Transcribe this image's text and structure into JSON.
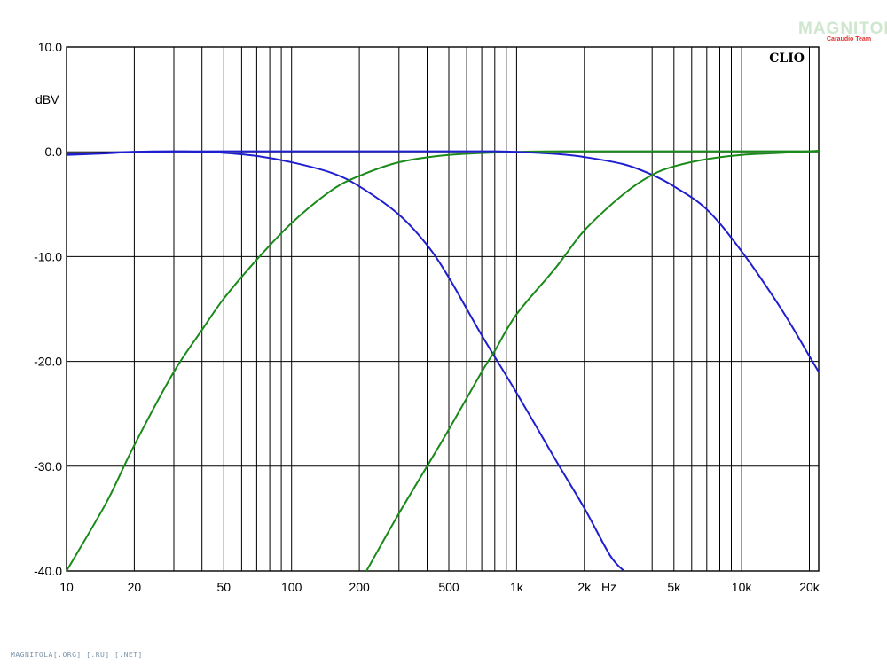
{
  "chart_data": {
    "type": "line",
    "x_scale": "log",
    "xlim": [
      10,
      22000
    ],
    "ylim": [
      -40,
      10
    ],
    "y_unit_label": "dBV",
    "x_unit_label": "Hz",
    "grid": true,
    "brand_label": "CLIO",
    "y_ticks": [
      {
        "value": 10,
        "label": "10.0"
      },
      {
        "value": 0,
        "label": "0.0"
      },
      {
        "value": -10,
        "label": "-10.0"
      },
      {
        "value": -20,
        "label": "-20.0"
      },
      {
        "value": -30,
        "label": "-30.0"
      },
      {
        "value": -40,
        "label": "-40.0"
      }
    ],
    "x_ticks": [
      {
        "value": 10,
        "label": "10"
      },
      {
        "value": 20,
        "label": "20"
      },
      {
        "value": 50,
        "label": "50"
      },
      {
        "value": 100,
        "label": "100"
      },
      {
        "value": 200,
        "label": "200"
      },
      {
        "value": 500,
        "label": "500"
      },
      {
        "value": 1000,
        "label": "1k"
      },
      {
        "value": 2000,
        "label": "2k"
      },
      {
        "value": 5000,
        "label": "5k"
      },
      {
        "value": 10000,
        "label": "10k"
      },
      {
        "value": 20000,
        "label": "20k"
      }
    ],
    "series": [
      {
        "color": "#1f1fd0",
        "points": [
          [
            10,
            -0.3
          ],
          [
            15,
            -0.15
          ],
          [
            20,
            0
          ],
          [
            30,
            0.05
          ],
          [
            40,
            0
          ],
          [
            50,
            -0.1
          ],
          [
            70,
            -0.4
          ],
          [
            100,
            -1.0
          ],
          [
            150,
            -2.0
          ],
          [
            200,
            -3.3
          ],
          [
            300,
            -6.0
          ],
          [
            400,
            -8.9
          ],
          [
            500,
            -12.0
          ],
          [
            700,
            -17.5
          ],
          [
            1000,
            -23.0
          ],
          [
            1500,
            -29.5
          ],
          [
            2000,
            -34.0
          ],
          [
            2600,
            -38.5
          ],
          [
            3000,
            -40.0
          ]
        ]
      },
      {
        "color": "#1a8a1a",
        "points": [
          [
            10,
            -40.0
          ],
          [
            15,
            -33.5
          ],
          [
            20,
            -28.0
          ],
          [
            30,
            -21.0
          ],
          [
            40,
            -17.0
          ],
          [
            50,
            -14.0
          ],
          [
            70,
            -10.3
          ],
          [
            100,
            -6.8
          ],
          [
            150,
            -3.7
          ],
          [
            200,
            -2.3
          ],
          [
            300,
            -1.0
          ],
          [
            500,
            -0.3
          ],
          [
            1000,
            0
          ],
          [
            2000,
            0.05
          ],
          [
            5000,
            0.05
          ],
          [
            10000,
            0.05
          ],
          [
            22000,
            0.05
          ]
        ]
      },
      {
        "color": "#1f1fd0",
        "points": [
          [
            10,
            -0.2
          ],
          [
            15,
            -0.1
          ],
          [
            20,
            0
          ],
          [
            50,
            0.05
          ],
          [
            100,
            0.05
          ],
          [
            200,
            0.05
          ],
          [
            500,
            0.05
          ],
          [
            800,
            0.05
          ],
          [
            1000,
            0
          ],
          [
            1500,
            -0.2
          ],
          [
            2000,
            -0.5
          ],
          [
            3000,
            -1.2
          ],
          [
            4000,
            -2.2
          ],
          [
            5000,
            -3.3
          ],
          [
            7000,
            -5.5
          ],
          [
            10000,
            -9.5
          ],
          [
            15000,
            -15.0
          ],
          [
            20000,
            -19.5
          ],
          [
            22000,
            -21.0
          ]
        ]
      },
      {
        "color": "#1a8a1a",
        "points": [
          [
            215,
            -40.0
          ],
          [
            250,
            -37.5
          ],
          [
            300,
            -34.5
          ],
          [
            400,
            -30.0
          ],
          [
            500,
            -26.5
          ],
          [
            700,
            -21.0
          ],
          [
            800,
            -19.0
          ],
          [
            1000,
            -15.5
          ],
          [
            1500,
            -11.0
          ],
          [
            2000,
            -7.5
          ],
          [
            3000,
            -4.0
          ],
          [
            4000,
            -2.2
          ],
          [
            5000,
            -1.4
          ],
          [
            7000,
            -0.7
          ],
          [
            10000,
            -0.3
          ],
          [
            15000,
            -0.1
          ],
          [
            22000,
            0.1
          ]
        ]
      }
    ]
  },
  "watermark": {
    "logo_text": "MAGNITOLA",
    "logo_subtext": "Caraudio Team",
    "footer_text": "MAGNITOLA[.ORG] [.RU] [.NET]"
  }
}
